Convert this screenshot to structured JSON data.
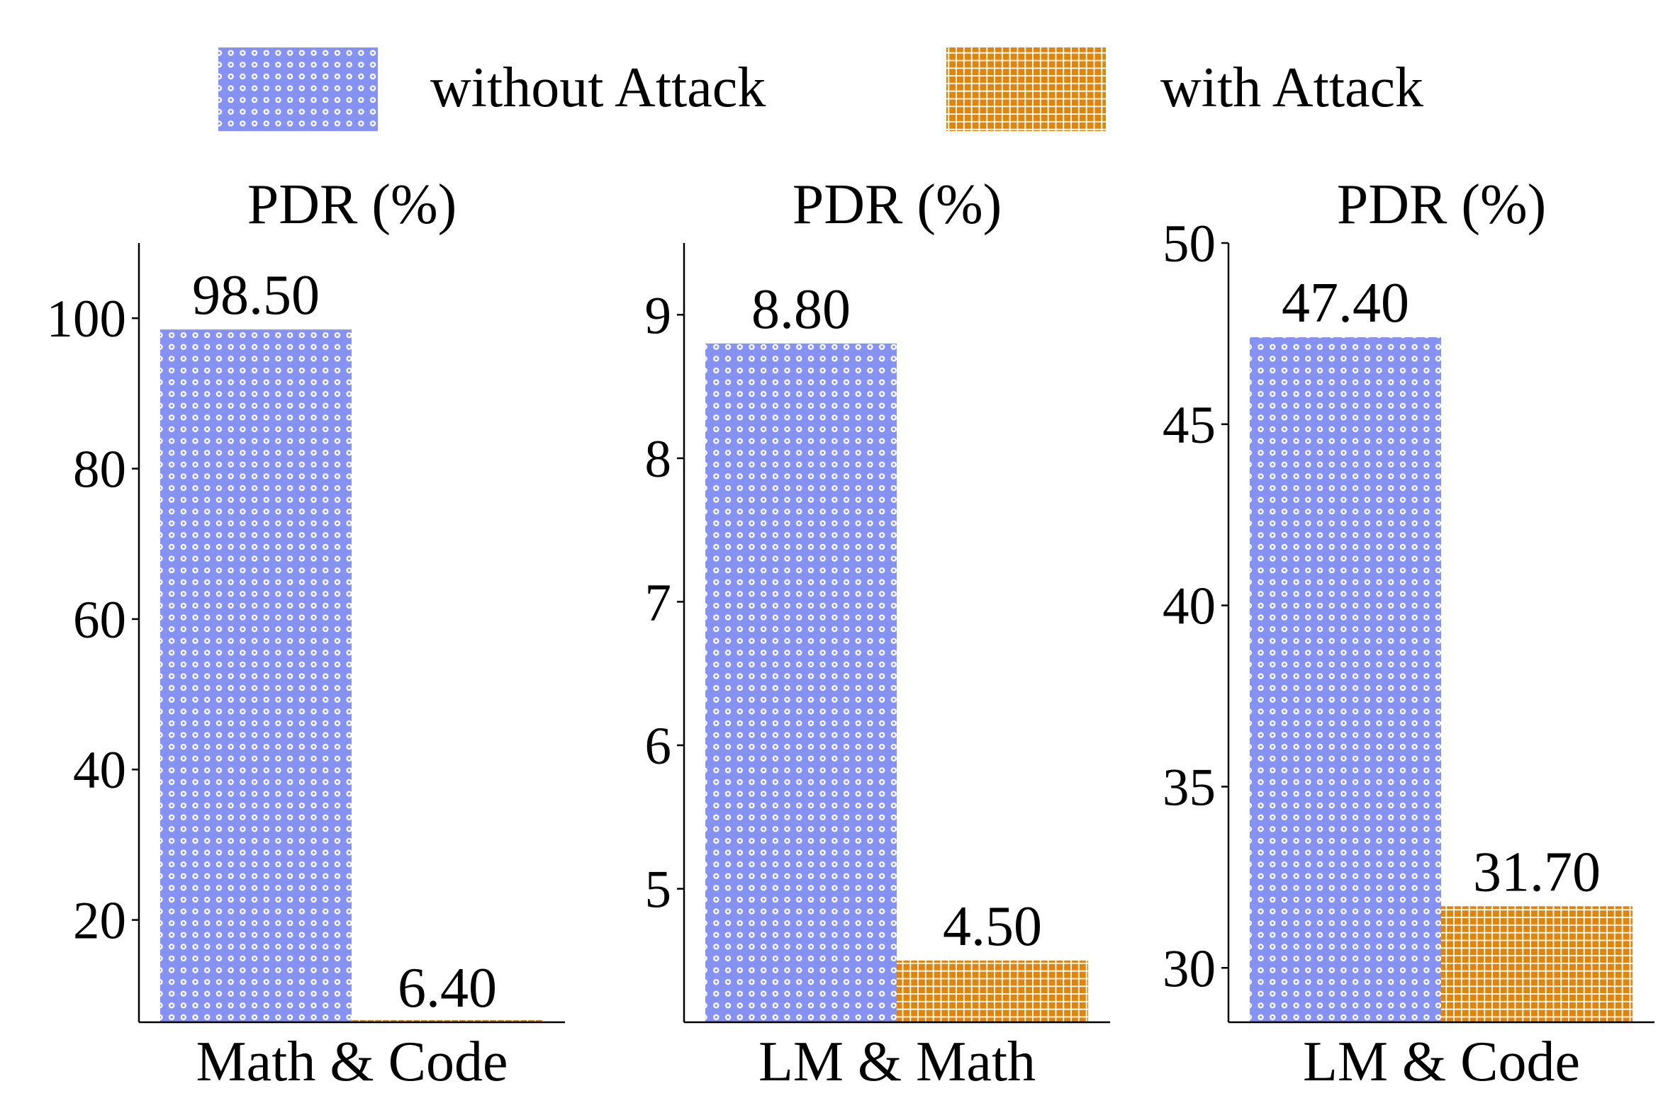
{
  "legend": {
    "position": "top-center",
    "items": [
      {
        "label": "without Attack",
        "color": "#8592F2",
        "pattern": "dots"
      },
      {
        "label": "with Attack",
        "color": "#E0850C",
        "pattern": "grid"
      }
    ]
  },
  "chart_data": [
    {
      "type": "bar",
      "title": "PDR (%)",
      "xlabel": "Math & Code",
      "ylabel": "",
      "series": [
        {
          "name": "without Attack",
          "values": [
            98.5
          ],
          "label": "98.50"
        },
        {
          "name": "with Attack",
          "values": [
            6.4
          ],
          "label": "6.40"
        }
      ],
      "ylim": [
        6.4,
        110
      ],
      "yticks": [
        20,
        40,
        60,
        80,
        100
      ],
      "ytick_labels": [
        "20",
        "40",
        "60",
        "80",
        "100"
      ],
      "grid": false
    },
    {
      "type": "bar",
      "title": "PDR (%)",
      "xlabel": "LM & Math",
      "ylabel": "",
      "series": [
        {
          "name": "without Attack",
          "values": [
            8.8
          ],
          "label": "8.80"
        },
        {
          "name": "with Attack",
          "values": [
            4.5
          ],
          "label": "4.50"
        }
      ],
      "ylim": [
        4.07,
        9.5
      ],
      "yticks": [
        5,
        6,
        7,
        8,
        9
      ],
      "ytick_labels": [
        "5",
        "6",
        "7",
        "8",
        "9"
      ],
      "grid": false
    },
    {
      "type": "bar",
      "title": "PDR (%)",
      "xlabel": "LM & Code",
      "ylabel": "",
      "series": [
        {
          "name": "without Attack",
          "values": [
            47.4
          ],
          "label": "47.40"
        },
        {
          "name": "with Attack",
          "values": [
            31.7
          ],
          "label": "31.70"
        }
      ],
      "ylim": [
        28.5,
        50
      ],
      "yticks": [
        30,
        35,
        40,
        45,
        50
      ],
      "ytick_labels": [
        "30",
        "35",
        "40",
        "45",
        "50"
      ],
      "grid": false
    }
  ]
}
